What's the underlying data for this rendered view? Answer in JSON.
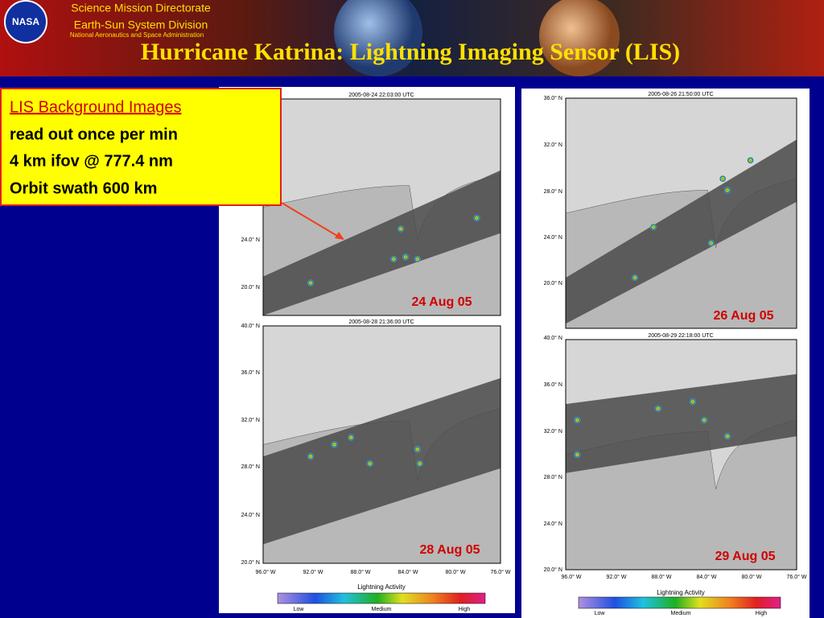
{
  "header": {
    "logo": "NASA",
    "org_lines": [
      "Science Mission Directorate",
      "Earth-Sun System Division",
      "National Aeronautics and Space Administration"
    ],
    "title": "Hurricane Katrina: Lightning Imaging Sensor (LIS)"
  },
  "callout": {
    "heading": "LIS Background Images",
    "lines": [
      "read out once per min",
      "4 km ifov @ 777.4 nm",
      "Orbit swath 600 km"
    ]
  },
  "panels": [
    {
      "timestamp": "2005-08-24   22:03:00 UTC",
      "date_label": "24 Aug 05",
      "lat_ticks": [
        "24.0° N",
        "20.0° N"
      ]
    },
    {
      "timestamp": "2005-08-26   21:50:00 UTC",
      "date_label": "26 Aug 05",
      "lat_ticks": [
        "36.0° N",
        "32.0° N",
        "28.0° N",
        "24.0° N",
        "20.0° N"
      ]
    },
    {
      "timestamp": "2005-08-28   21:36:00 UTC",
      "date_label": "28 Aug 05",
      "lat_ticks": [
        "40.0° N",
        "36.0° N",
        "32.0° N",
        "28.0° N",
        "24.0° N",
        "20.0° N"
      ],
      "lon_ticks": [
        "96.0° W",
        "92.0° W",
        "88.0° W",
        "84.0° W",
        "80.0° W",
        "76.0° W"
      ]
    },
    {
      "timestamp": "2005-08-29   22:18:00 UTC",
      "date_label": "29 Aug 05",
      "lat_ticks": [
        "40.0° N",
        "36.0° N",
        "32.0° N",
        "28.0° N",
        "24.0° N",
        "20.0° N"
      ],
      "lon_ticks": [
        "96.0° W",
        "92.0° W",
        "88.0° W",
        "84.0° W",
        "80.0° W",
        "76.0° W"
      ]
    }
  ],
  "legends": [
    {
      "title": "Lightning Activity",
      "levels": [
        "Low",
        "Medium",
        "High"
      ]
    },
    {
      "title": "Lightning Activity",
      "levels": [
        "Low",
        "Medium",
        "High"
      ]
    }
  ]
}
